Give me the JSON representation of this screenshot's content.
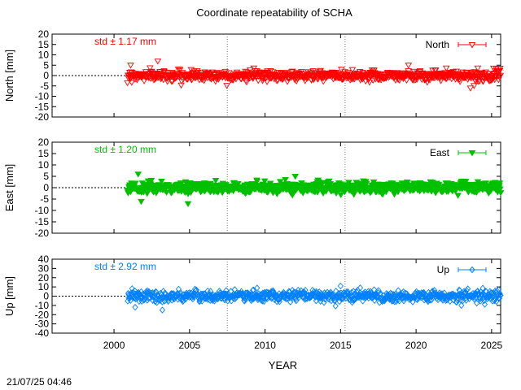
{
  "title": "Coordinate repeatability of SCHA",
  "timestamp": "21/07/25 04:46",
  "chart_data": [
    {
      "type": "scatter",
      "panel": "north",
      "ylabel": "North [mm]",
      "ylim": [
        -20,
        20
      ],
      "yticks": [
        -20,
        -15,
        -10,
        -5,
        0,
        5,
        10,
        15,
        20
      ],
      "xlim": [
        1995.9,
        2025.6
      ],
      "stat_label": "std ± 1.17 mm",
      "series": [
        {
          "name": "North",
          "color": "#ff0000",
          "marker": "triangle-down-open",
          "x_range": [
            2000.9,
            2025.6
          ],
          "std": 1.17
        }
      ],
      "legend_position": "top-right",
      "vlines": [
        2007.5,
        2015.3
      ]
    },
    {
      "type": "scatter",
      "panel": "east",
      "ylabel": "East [mm]",
      "ylim": [
        -20,
        20
      ],
      "yticks": [
        -20,
        -15,
        -10,
        -5,
        0,
        5,
        10,
        15,
        20
      ],
      "xlim": [
        1995.9,
        2025.6
      ],
      "stat_label": "std ± 1.20 mm",
      "series": [
        {
          "name": "East",
          "color": "#00c000",
          "marker": "triangle-down-filled",
          "x_range": [
            2000.9,
            2025.6
          ],
          "std": 1.2
        }
      ],
      "legend_position": "top-right",
      "vlines": [
        2007.5,
        2015.3
      ]
    },
    {
      "type": "scatter",
      "panel": "up",
      "ylabel": "Up [mm]",
      "ylim": [
        -40,
        40
      ],
      "yticks": [
        -40,
        -30,
        -20,
        -10,
        0,
        10,
        20,
        30,
        40
      ],
      "xlim": [
        1995.9,
        2025.6
      ],
      "xticks": [
        2000,
        2005,
        2010,
        2015,
        2020,
        2025
      ],
      "xlabel": "YEAR",
      "stat_label": "std ± 2.92 mm",
      "series": [
        {
          "name": "Up",
          "color": "#0080ff",
          "marker": "diamond-open",
          "x_range": [
            2000.9,
            2025.6
          ],
          "std": 2.92
        }
      ],
      "legend_position": "top-right",
      "vlines": [
        2007.5,
        2015.3
      ]
    }
  ]
}
